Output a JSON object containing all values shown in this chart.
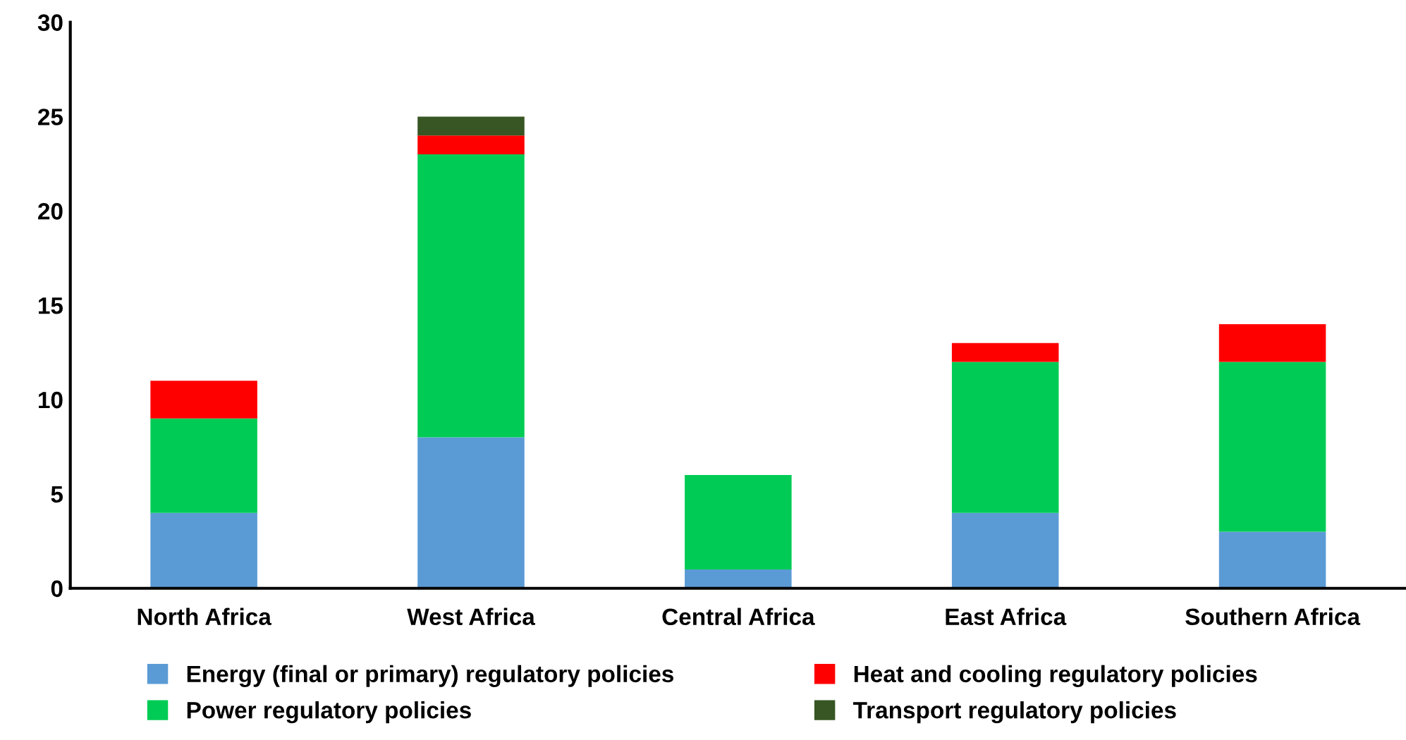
{
  "chart_data": {
    "type": "bar",
    "stacked": true,
    "categories": [
      "North Africa",
      "West Africa",
      "Central Africa",
      "East Africa",
      "Southern Africa"
    ],
    "series": [
      {
        "name": "Energy (final or primary) regulatory policies",
        "color": "#5b9bd5",
        "values": [
          4,
          8,
          1,
          4,
          3
        ]
      },
      {
        "name": "Power regulatory policies",
        "color": "#00cc55",
        "values": [
          5,
          15,
          5,
          8,
          9
        ]
      },
      {
        "name": "Heat and cooling regulatory policies",
        "color": "#ff0000",
        "values": [
          2,
          1,
          null,
          1,
          2
        ]
      },
      {
        "name": "Transport regulatory policies",
        "color": "#375623",
        "values": [
          null,
          1,
          null,
          null,
          null
        ]
      }
    ],
    "ylim": [
      0,
      30
    ],
    "yticks": [
      0,
      5,
      10,
      15,
      20,
      25,
      30
    ],
    "grid": false,
    "legend": "bottom"
  }
}
